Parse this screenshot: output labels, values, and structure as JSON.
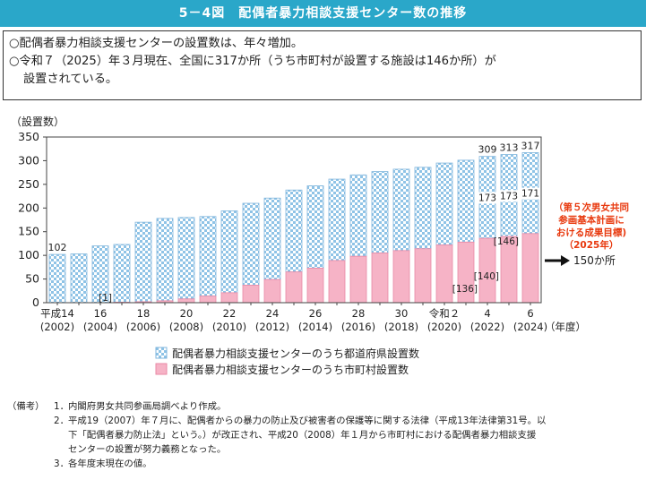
{
  "header": {
    "title": "5－4図　配偶者暴力相談支援センター数の推移"
  },
  "summary": {
    "line1": "○配偶者暴力相談支援センターの設置数は、年々増加。",
    "line2": "○令和７（2025）年３月現在、全国に317か所（うち市町村が設置する施設は146か所）が",
    "line3": "設置されている。"
  },
  "chart_data": {
    "type": "bar",
    "stacked": true,
    "ylabel": "（設置数）",
    "xlabel": "（年度）",
    "ylim": [
      0,
      350
    ],
    "yticks": [
      0,
      50,
      100,
      150,
      200,
      250,
      300,
      350
    ],
    "years": [
      2002,
      2003,
      2004,
      2005,
      2006,
      2007,
      2008,
      2009,
      2010,
      2011,
      2012,
      2013,
      2014,
      2015,
      2016,
      2017,
      2018,
      2019,
      2020,
      2021,
      2022,
      2023,
      2024
    ],
    "tick_labels": [
      {
        "index": 0,
        "era": "平成14",
        "year": "(2002)"
      },
      {
        "index": 2,
        "era": "16",
        "year": "(2004)"
      },
      {
        "index": 4,
        "era": "18",
        "year": "(2006)"
      },
      {
        "index": 6,
        "era": "20",
        "year": "(2008)"
      },
      {
        "index": 8,
        "era": "22",
        "year": "(2010)"
      },
      {
        "index": 10,
        "era": "24",
        "year": "(2012)"
      },
      {
        "index": 12,
        "era": "26",
        "year": "(2014)"
      },
      {
        "index": 14,
        "era": "28",
        "year": "(2016)"
      },
      {
        "index": 16,
        "era": "30",
        "year": "(2018)"
      },
      {
        "index": 18,
        "era": "令和２",
        "year": "(2020)"
      },
      {
        "index": 20,
        "era": "4",
        "year": "(2022)"
      },
      {
        "index": 22,
        "era": "6",
        "year": "(2024)"
      }
    ],
    "series": [
      {
        "name": "配偶者暴力相談支援センターのうち市町村設置数",
        "color": "#f6b3c6",
        "values": [
          0,
          0,
          0,
          1,
          2,
          4,
          8,
          14,
          21,
          37,
          49,
          65,
          73,
          89,
          98,
          105,
          110,
          114,
          122,
          128,
          136,
          140,
          146
        ]
      },
      {
        "name": "配偶者暴力相談支援センターのうち都道府県設置数",
        "color": "#9cc9e8",
        "values": [
          102,
          103,
          120,
          122,
          168,
          174,
          172,
          168,
          173,
          173,
          172,
          173,
          174,
          172,
          172,
          172,
          172,
          172,
          173,
          173,
          173,
          173,
          171
        ]
      }
    ],
    "totals": [
      102,
      103,
      120,
      123,
      170,
      178,
      180,
      182,
      194,
      210,
      221,
      238,
      247,
      261,
      270,
      277,
      282,
      286,
      295,
      301,
      309,
      313,
      317
    ],
    "total_labels": [
      {
        "index": 0,
        "text": "102"
      },
      {
        "index": 20,
        "text": "309"
      },
      {
        "index": 21,
        "text": "313"
      },
      {
        "index": 22,
        "text": "317"
      }
    ],
    "segment_labels": [
      {
        "index": 3,
        "series": 0,
        "text": "[1]"
      },
      {
        "index": 20,
        "series": 0,
        "text": "[136]"
      },
      {
        "index": 21,
        "series": 0,
        "text": "[140]"
      },
      {
        "index": 22,
        "series": 0,
        "text": "[146]"
      },
      {
        "index": 20,
        "series": 1,
        "text": "173"
      },
      {
        "index": 21,
        "series": 1,
        "text": "173"
      },
      {
        "index": 22,
        "series": 1,
        "text": "171"
      }
    ],
    "target": {
      "label_lines": [
        "（第５次男女共同",
        "参画基本計画に",
        "おける成果目標)",
        "（2025年）"
      ],
      "value_text": "150か所",
      "color": "#e8380d"
    }
  },
  "notes": {
    "head": "（備考）",
    "items": [
      {
        "num": "1．",
        "lines": [
          "内閣府男女共同参画局調べより作成。"
        ]
      },
      {
        "num": "2．",
        "lines": [
          "平成19（2007）年７月に、配偶者からの暴力の防止及び被害者の保護等に関する法律（平成13年法律第31号。以",
          "下「配偶者暴力防止法」という。）が改正され、平成20（2008）年１月から市町村における配偶者暴力相談支援",
          "センターの設置が努力義務となった。"
        ]
      },
      {
        "num": "3．",
        "lines": [
          "各年度末現在の値。"
        ]
      }
    ]
  }
}
